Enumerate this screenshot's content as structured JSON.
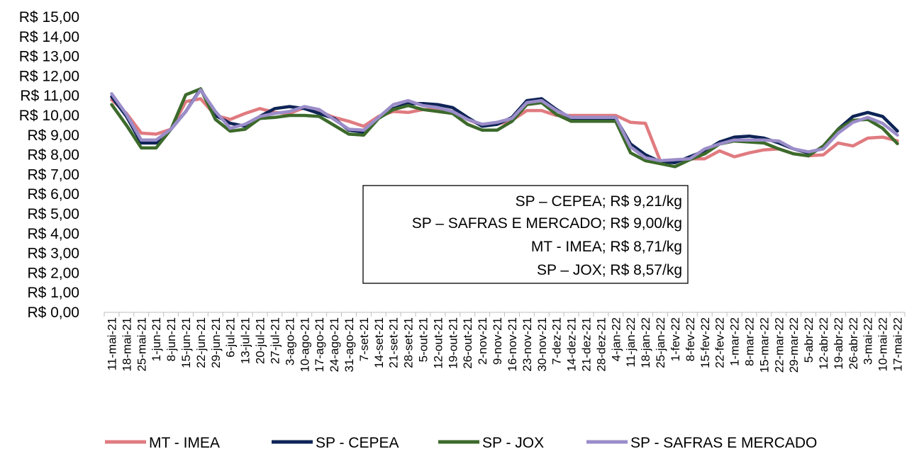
{
  "chart_data": {
    "type": "line",
    "title": "",
    "xlabel": "",
    "ylabel": "",
    "ylim": [
      0,
      15
    ],
    "y_ticks": [
      "R$ 0,00",
      "R$ 1,00",
      "R$ 2,00",
      "R$ 3,00",
      "R$ 4,00",
      "R$ 5,00",
      "R$ 6,00",
      "R$ 7,00",
      "R$ 8,00",
      "R$ 9,00",
      "R$ 10,00",
      "R$ 11,00",
      "R$ 12,00",
      "R$ 13,00",
      "R$ 14,00",
      "R$ 15,00"
    ],
    "grid": false,
    "legend_position": "bottom",
    "categories": [
      "11-mai-21",
      "18-mai-21",
      "25-mai-21",
      "1-jun-21",
      "8-jun-21",
      "15-jun-21",
      "22-jun-21",
      "29-jun-21",
      "6-jul-21",
      "13-jul-21",
      "20-jul-21",
      "27-jul-21",
      "3-ago-21",
      "10-ago-21",
      "17-ago-21",
      "24-ago-21",
      "31-ago-21",
      "7-set-21",
      "14-set-21",
      "21-set-21",
      "28-set-21",
      "5-out-21",
      "12-out-21",
      "19-out-21",
      "26-out-21",
      "2-nov-21",
      "9-nov-21",
      "16-nov-21",
      "23-nov-21",
      "30-nov-21",
      "7-dez-21",
      "14-dez-21",
      "21-dez-21",
      "28-dez-21",
      "4-jan-22",
      "11-jan-22",
      "18-jan-22",
      "25-jan-22",
      "1-fev-22",
      "8-fev-22",
      "15-fev-22",
      "22-fev-22",
      "1-mar-22",
      "8-mar-22",
      "15-mar-22",
      "22-mar-22",
      "29-mar-22",
      "5-abr-22",
      "12-abr-22",
      "19-abr-22",
      "26-abr-22",
      "3-mai-22",
      "10-mai-22",
      "17-mai-22"
    ],
    "series": [
      {
        "name": "MT - IMEA",
        "color": "#E07B80",
        "values": [
          10.8,
          10.1,
          9.1,
          9.05,
          9.3,
          10.7,
          10.85,
          10.0,
          9.8,
          10.1,
          10.35,
          10.15,
          10.1,
          10.4,
          10.2,
          9.9,
          9.7,
          9.45,
          9.95,
          10.2,
          10.15,
          10.3,
          10.3,
          10.2,
          9.8,
          9.5,
          9.55,
          9.75,
          10.25,
          10.25,
          10.0,
          10.0,
          10.0,
          10.0,
          10.0,
          9.65,
          9.6,
          7.7,
          7.7,
          7.8,
          7.8,
          8.2,
          7.9,
          8.1,
          8.25,
          8.3,
          8.05,
          7.95,
          8.0,
          8.6,
          8.45,
          8.85,
          8.9,
          8.71
        ]
      },
      {
        "name": "SP - CEPEA",
        "color": "#0E2456",
        "values": [
          10.95,
          9.95,
          8.6,
          8.6,
          9.3,
          10.2,
          11.35,
          10.0,
          9.6,
          9.45,
          9.95,
          10.35,
          10.45,
          10.35,
          10.1,
          9.85,
          9.25,
          9.15,
          9.9,
          10.35,
          10.6,
          10.6,
          10.55,
          10.4,
          9.9,
          9.45,
          9.55,
          9.9,
          10.75,
          10.85,
          10.3,
          9.85,
          9.85,
          9.85,
          9.85,
          8.55,
          8.0,
          7.65,
          7.6,
          7.9,
          8.2,
          8.65,
          8.9,
          8.95,
          8.85,
          8.6,
          8.3,
          8.1,
          8.35,
          9.3,
          9.95,
          10.15,
          9.95,
          9.21
        ]
      },
      {
        "name": "SP - JOX",
        "color": "#3C6A2B",
        "values": [
          10.55,
          9.5,
          8.35,
          8.35,
          9.3,
          11.05,
          11.35,
          9.8,
          9.2,
          9.3,
          9.85,
          9.9,
          10.0,
          10.0,
          9.95,
          9.5,
          9.05,
          9.0,
          9.85,
          10.3,
          10.5,
          10.3,
          10.2,
          10.1,
          9.55,
          9.25,
          9.25,
          9.7,
          10.55,
          10.65,
          10.05,
          9.7,
          9.7,
          9.7,
          9.7,
          8.1,
          7.7,
          7.55,
          7.4,
          7.75,
          8.05,
          8.55,
          8.7,
          8.65,
          8.6,
          8.3,
          8.05,
          7.95,
          8.45,
          9.3,
          9.75,
          9.8,
          9.35,
          8.57
        ]
      },
      {
        "name": "SP - SAFRAS E MERCADO",
        "color": "#9B8DC9",
        "values": [
          11.1,
          10.05,
          8.75,
          8.75,
          9.3,
          10.2,
          11.3,
          10.2,
          9.35,
          9.55,
          9.95,
          10.1,
          10.2,
          10.45,
          10.3,
          9.8,
          9.3,
          9.25,
          9.9,
          10.55,
          10.75,
          10.5,
          10.4,
          10.2,
          9.8,
          9.55,
          9.65,
          9.85,
          10.65,
          10.75,
          10.25,
          9.9,
          9.9,
          9.9,
          9.9,
          8.4,
          7.85,
          7.7,
          7.75,
          7.8,
          8.3,
          8.55,
          8.75,
          8.75,
          8.75,
          8.7,
          8.3,
          8.15,
          8.3,
          9.1,
          9.65,
          9.9,
          9.6,
          9.0
        ]
      }
    ],
    "annotations": [
      "SP – CEPEA; R$ 9,21/kg",
      "SP – SAFRAS E MERCADO; R$ 9,00/kg",
      "MT - IMEA; R$ 8,71/kg",
      "SP – JOX; R$ 8,57/kg"
    ]
  }
}
